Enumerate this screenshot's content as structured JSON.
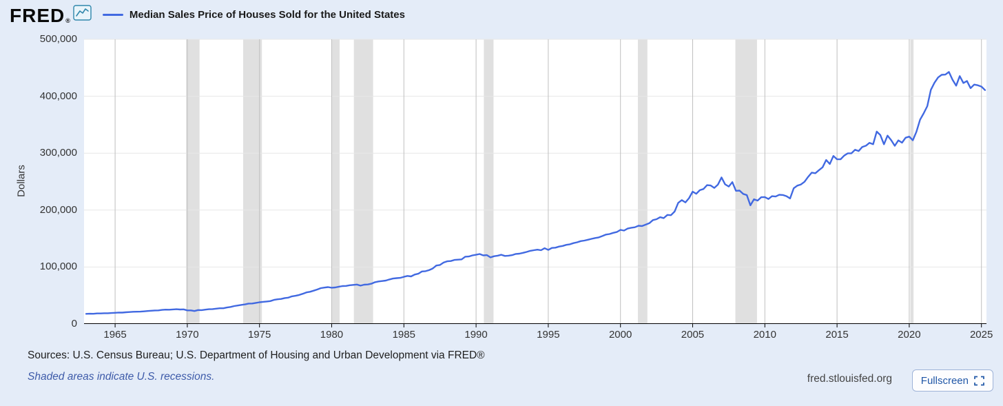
{
  "header": {
    "logo_text": "FRED",
    "logo_reg": "®",
    "legend_label": "Median Sales Price of Houses Sold for the United States"
  },
  "footer": {
    "sources": "Sources: U.S. Census Bureau; U.S. Department of Housing and Urban Development via FRED®",
    "recession_note": "Shaded areas indicate U.S. recessions.",
    "site": "fred.stlouisfed.org",
    "fullscreen_label": "Fullscreen"
  },
  "colors": {
    "page_background": "#e4ecf8",
    "line_blue": "#4169e1",
    "link_blue": "#3e5ba9",
    "button_text_blue": "#2057a7"
  },
  "chart_data": {
    "type": "line",
    "title": "Median Sales Price of Houses Sold for the United States",
    "xlabel": "",
    "ylabel": "Dollars",
    "xlim": [
      1962.85,
      2025.35
    ],
    "ylim": [
      0,
      500000
    ],
    "x_ticks": [
      1965,
      1970,
      1975,
      1980,
      1985,
      1990,
      1995,
      2000,
      2005,
      2010,
      2015,
      2020,
      2025
    ],
    "x_tick_labels": [
      "1965",
      "1970",
      "1975",
      "1980",
      "1985",
      "1990",
      "1995",
      "2000",
      "2005",
      "2010",
      "2015",
      "2020",
      "2025"
    ],
    "y_ticks": [
      0,
      100000,
      200000,
      300000,
      400000,
      500000
    ],
    "y_tick_labels": [
      "0",
      "100,000",
      "200,000",
      "300,000",
      "400,000",
      "500,000"
    ],
    "grid": true,
    "line_color": "#4169e1",
    "recession_color": "#e0e0e0",
    "vgrid_color": "#bfbfbf",
    "hgrid_color": "#e7e7e7",
    "axis_color": "#000000",
    "recession_bands": [
      [
        1969.92,
        1970.85
      ],
      [
        1973.87,
        1975.17
      ],
      [
        1980.0,
        1980.55
      ],
      [
        1981.54,
        1982.87
      ],
      [
        1990.54,
        1991.21
      ],
      [
        2001.21,
        2001.87
      ],
      [
        2007.96,
        2009.46
      ],
      [
        2020.08,
        2020.3
      ]
    ],
    "series": {
      "name": "Median Sales Price of Houses Sold for the United States",
      "frequency": "quarterly",
      "start_year": 1963.0,
      "period_years": 0.25,
      "values": [
        17800,
        18000,
        17900,
        18500,
        18500,
        18900,
        18900,
        19300,
        19600,
        20100,
        20000,
        20600,
        21000,
        21400,
        21600,
        21700,
        22200,
        22700,
        23300,
        23700,
        23900,
        24700,
        25200,
        25100,
        25600,
        25900,
        25400,
        25700,
        23900,
        23900,
        22700,
        24400,
        24300,
        25200,
        25900,
        26200,
        26900,
        27600,
        27600,
        28900,
        29900,
        31500,
        32500,
        33500,
        34400,
        35800,
        36000,
        37000,
        38100,
        38900,
        39500,
        40200,
        42200,
        43400,
        44000,
        45500,
        46300,
        48500,
        49500,
        51000,
        53000,
        55500,
        56500,
        58500,
        60500,
        63000,
        63900,
        64800,
        63700,
        64200,
        65500,
        66600,
        66800,
        68000,
        68700,
        69300,
        67300,
        69000,
        69400,
        70700,
        73400,
        74700,
        75400,
        76300,
        78200,
        79800,
        80500,
        81000,
        82800,
        84400,
        83500,
        86800,
        88200,
        92200,
        92700,
        94500,
        97400,
        102700,
        103600,
        107900,
        110000,
        110500,
        112500,
        113000,
        113400,
        118100,
        118500,
        120500,
        121500,
        122900,
        120500,
        121000,
        117000,
        119000,
        120000,
        121500,
        119500,
        120000,
        121000,
        123000,
        123500,
        125000,
        126500,
        128500,
        129500,
        130500,
        129500,
        133000,
        130000,
        133500,
        134000,
        136000,
        137000,
        139000,
        140000,
        142000,
        143500,
        145500,
        146500,
        148000,
        149500,
        151000,
        152000,
        154500,
        157000,
        158000,
        160000,
        161500,
        165300,
        164000,
        167500,
        169000,
        169800,
        172500,
        172000,
        174500,
        177000,
        182500,
        184000,
        187500,
        186000,
        191500,
        191000,
        197500,
        212700,
        217600,
        213500,
        221000,
        232500,
        228700,
        235000,
        237000,
        243800,
        243200,
        239000,
        244700,
        257400,
        245300,
        241400,
        249100,
        233900,
        234300,
        228400,
        226400,
        208400,
        219000,
        216700,
        222600,
        222900,
        219500,
        224500,
        223900,
        226900,
        226500,
        224500,
        220400,
        238400,
        243000,
        245000,
        249800,
        258400,
        265800,
        264800,
        270200,
        275200,
        288000,
        281000,
        295100,
        289200,
        289400,
        295800,
        299800,
        299800,
        306000,
        303800,
        310900,
        313100,
        318200,
        315700,
        337900,
        331800,
        315600,
        330900,
        322800,
        313000,
        322500,
        318400,
        327100,
        329000,
        322600,
        337500,
        358700,
        369800,
        382600,
        411200,
        423600,
        433100,
        437700,
        438000,
        442600,
        429000,
        418500,
        435400,
        423200,
        426800,
        414200,
        420400,
        419300,
        416900,
        410800
      ]
    }
  }
}
